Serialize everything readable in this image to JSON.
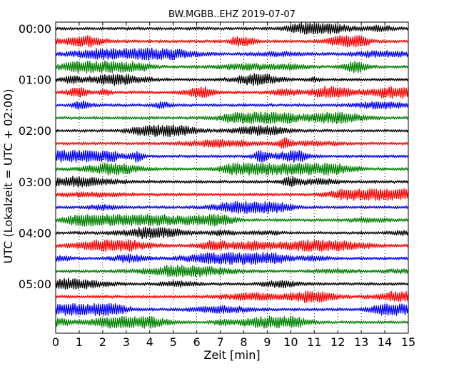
{
  "chart_data": {
    "type": "line",
    "title": "BW.MGBB..EHZ 2019-07-07",
    "xlabel": "Zeit  [min]",
    "ylabel": "UTC (Lokalzeit = UTC + 02:00)",
    "xlim": [
      0,
      15
    ],
    "x_ticks": [
      "0",
      "1",
      "2",
      "3",
      "4",
      "5",
      "6",
      "7",
      "8",
      "9",
      "10",
      "11",
      "12",
      "13",
      "14",
      "15"
    ],
    "y_tick_labels": [
      "00:00",
      "01:00",
      "02:00",
      "03:00",
      "04:00",
      "05:00"
    ],
    "grid": "vertical-dotted",
    "trace_interval_min": 15,
    "trace_colors": [
      "#000000",
      "#ff0000",
      "#0000ff",
      "#008000"
    ],
    "trace_count": 24
  }
}
